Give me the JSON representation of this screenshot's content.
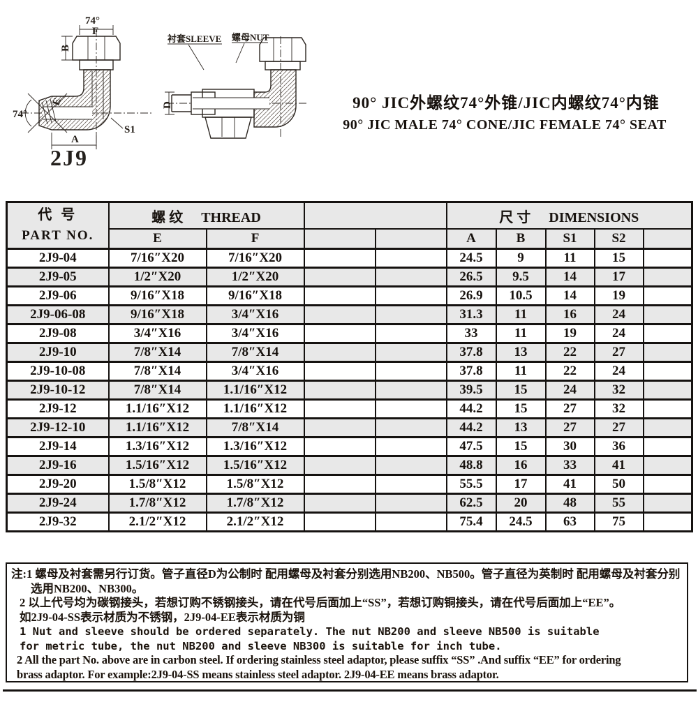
{
  "page": {
    "model_code": "2J9",
    "title_cn": "90° JIC外螺纹74°外锥/JIC内螺纹74°内锥",
    "title_en": "90° JIC MALE 74° CONE/JIC FEMALE 74° SEAT"
  },
  "drawing": {
    "labels": {
      "angle_top": "74°",
      "f": "F",
      "b": "B",
      "e": "E",
      "angle_left": "74°",
      "a": "A",
      "s1": "S1",
      "sleeve": "衬套SLEEVE",
      "nut": "螺母NUT",
      "d": "D"
    }
  },
  "table": {
    "header": {
      "part_no_cn": "代  号",
      "part_no_en": "PART  NO.",
      "thread_cn": "螺  纹",
      "thread_en": "THREAD",
      "dimensions_cn": "尺  寸",
      "dimensions_en": "DIMENSIONS",
      "sub": [
        "E",
        "F",
        "A",
        "B",
        "S1",
        "S2"
      ]
    },
    "rows": [
      {
        "part_no": "2J9-04",
        "e": "7/16″X20",
        "f": "7/16″X20",
        "a": "24.5",
        "b": "9",
        "s1": "11",
        "s2": "15"
      },
      {
        "part_no": "2J9-05",
        "e": "1/2″X20",
        "f": "1/2″X20",
        "a": "26.5",
        "b": "9.5",
        "s1": "14",
        "s2": "17"
      },
      {
        "part_no": "2J9-06",
        "e": "9/16″X18",
        "f": "9/16″X18",
        "a": "26.9",
        "b": "10.5",
        "s1": "14",
        "s2": "19"
      },
      {
        "part_no": "2J9-06-08",
        "e": "9/16″X18",
        "f": "3/4″X16",
        "a": "31.3",
        "b": "11",
        "s1": "16",
        "s2": "24"
      },
      {
        "part_no": "2J9-08",
        "e": "3/4″X16",
        "f": "3/4″X16",
        "a": "33",
        "b": "11",
        "s1": "19",
        "s2": "24"
      },
      {
        "part_no": "2J9-10",
        "e": "7/8″X14",
        "f": "7/8″X14",
        "a": "37.8",
        "b": "13",
        "s1": "22",
        "s2": "27"
      },
      {
        "part_no": "2J9-10-08",
        "e": "7/8″X14",
        "f": "3/4″X16",
        "a": "37.8",
        "b": "11",
        "s1": "22",
        "s2": "24"
      },
      {
        "part_no": "2J9-10-12",
        "e": "7/8″X14",
        "f": "1.1/16″X12",
        "a": "39.5",
        "b": "15",
        "s1": "24",
        "s2": "32"
      },
      {
        "part_no": "2J9-12",
        "e": "1.1/16″X12",
        "f": "1.1/16″X12",
        "a": "44.2",
        "b": "15",
        "s1": "27",
        "s2": "32"
      },
      {
        "part_no": "2J9-12-10",
        "e": "1.1/16″X12",
        "f": "7/8″X14",
        "a": "44.2",
        "b": "13",
        "s1": "27",
        "s2": "27"
      },
      {
        "part_no": "2J9-14",
        "e": "1.3/16″X12",
        "f": "1.3/16″X12",
        "a": "47.5",
        "b": "15",
        "s1": "30",
        "s2": "36"
      },
      {
        "part_no": "2J9-16",
        "e": "1.5/16″X12",
        "f": "1.5/16″X12",
        "a": "48.8",
        "b": "16",
        "s1": "33",
        "s2": "41"
      },
      {
        "part_no": "2J9-20",
        "e": "1.5/8″X12",
        "f": "1.5/8″X12",
        "a": "55.5",
        "b": "17",
        "s1": "41",
        "s2": "50"
      },
      {
        "part_no": "2J9-24",
        "e": "1.7/8″X12",
        "f": "1.7/8″X12",
        "a": "62.5",
        "b": "20",
        "s1": "48",
        "s2": "55"
      },
      {
        "part_no": "2J9-32",
        "e": "2.1/2″X12",
        "f": "2.1/2″X12",
        "a": "75.4",
        "b": "24.5",
        "s1": "63",
        "s2": "75"
      }
    ]
  },
  "notes": {
    "lines": [
      "注:1 螺母及衬套需另行订货。管子直径D为公制时  配用螺母及衬套分别选用NB200、NB500。管子直径为英制时  配用螺母及衬套分别",
      "选用NB200、NB300。",
      "2 以上代号均为碳钢接头，若想订购不锈钢接头，请在代号后面加上“SS”，若想订购铜接头，请在代号后面加上“EE”。",
      "如2J9-04-SS表示材质为不锈钢，2J9-04-EE表示材质为铜",
      "1 Nut and sleeve should be ordered separately. The nut NB200 and sleeve NB500 is suitable",
      "for metric tube, the nut NB200 and sleeve NB300 is suitable for inch tube.",
      "2 All the part No. above are in carbon steel. If ordering stainless steel adaptor, please suffix “SS” .And suffix “EE” for ordering",
      "brass adaptor. For example:2J9-04-SS means stainless steel adaptor. 2J9-04-EE means brass adaptor."
    ]
  },
  "colors": {
    "row_alt": "#e8e8e8",
    "border": "#151210",
    "text": "#1c1814"
  }
}
